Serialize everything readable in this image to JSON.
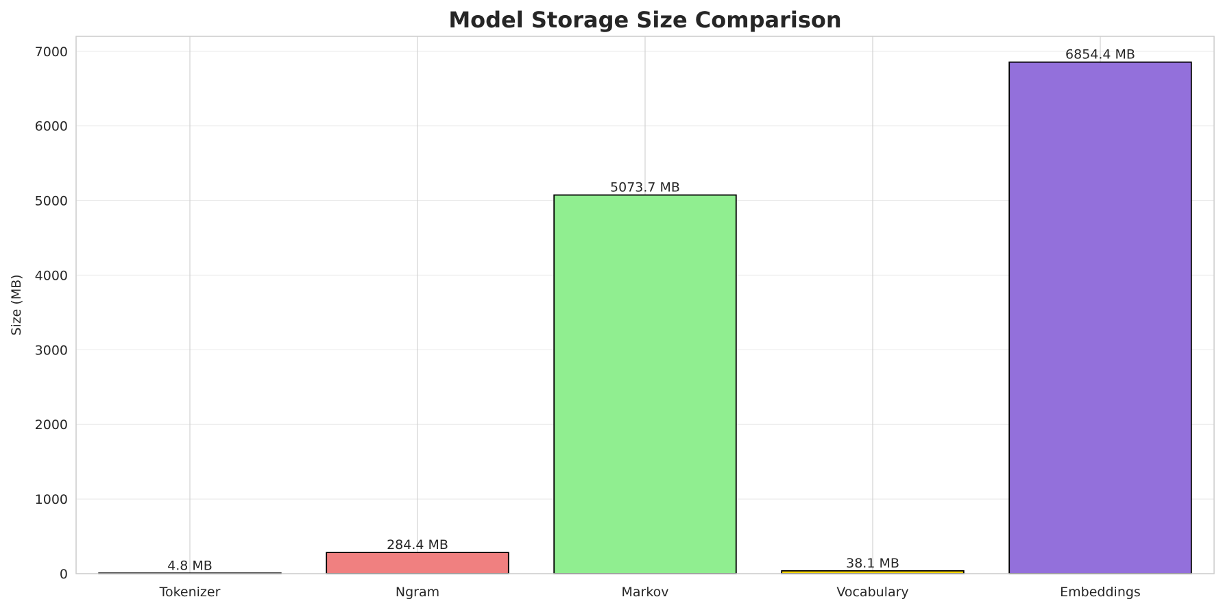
{
  "chart_data": {
    "type": "bar",
    "title": "Model Storage Size Comparison",
    "xlabel": "",
    "ylabel": "Size (MB)",
    "categories": [
      "Tokenizer",
      "Ngram",
      "Markov",
      "Vocabulary",
      "Embeddings"
    ],
    "values": [
      4.8,
      284.4,
      5073.7,
      38.1,
      6854.4
    ],
    "data_labels": [
      "4.8 MB",
      "284.4 MB",
      "5073.7 MB",
      "38.1 MB",
      "6854.4 MB"
    ],
    "colors": [
      "#add8e6",
      "#f08080",
      "#90ee90",
      "#ffd700",
      "#9370db"
    ],
    "edge_color": "#000000",
    "ylim": [
      0,
      7200
    ],
    "yticks": [
      0,
      1000,
      2000,
      3000,
      4000,
      5000,
      6000,
      7000
    ],
    "grid": true,
    "legend": "none"
  }
}
